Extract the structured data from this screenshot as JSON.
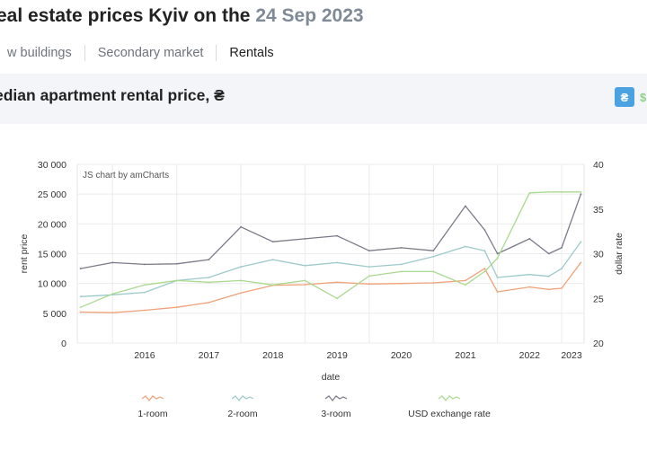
{
  "header": {
    "title_prefix": "eal estate prices Kyiv on the",
    "title_date": "24 Sep 2023"
  },
  "tabs": [
    {
      "label": "w buildings",
      "active": false
    },
    {
      "label": "Secondary market",
      "active": false
    },
    {
      "label": "Rentals",
      "active": true
    }
  ],
  "section": {
    "title": "edian apartment rental price, ₴",
    "currency_uah": "₴",
    "currency_usd": "$"
  },
  "chart_data": {
    "type": "line",
    "credit": "JS chart by amCharts",
    "xlabel": "date",
    "ylabel": "rent price",
    "y2label": "dollar rate",
    "x_ticks": [
      "2016",
      "2017",
      "2018",
      "2019",
      "2020",
      "2021",
      "2022",
      "2023"
    ],
    "y_ticks": [
      "0",
      "5 000",
      "10 000",
      "15 000",
      "20 000",
      "25 000",
      "30 000"
    ],
    "y2_ticks": [
      "20",
      "25",
      "30",
      "35",
      "40"
    ],
    "ylim": [
      0,
      30000
    ],
    "y2lim": [
      20,
      40
    ],
    "x_years": [
      2015.5,
      2016,
      2016.5,
      2017,
      2017.5,
      2018,
      2018.5,
      2019,
      2019.5,
      2020,
      2020.5,
      2021,
      2021.5,
      2021.8,
      2022,
      2022.5,
      2022.8,
      2023,
      2023.3
    ],
    "series": [
      {
        "name": "1-room",
        "color": "#f0a27a",
        "axis": "left",
        "values": [
          5200,
          5100,
          5500,
          6000,
          6800,
          8400,
          9700,
          9800,
          10200,
          9900,
          10000,
          10100,
          10500,
          12500,
          8600,
          9400,
          9000,
          9200,
          13500
        ]
      },
      {
        "name": "2-room",
        "color": "#9cc9c9",
        "axis": "left",
        "values": [
          7800,
          8100,
          8500,
          10500,
          11000,
          12800,
          14000,
          13000,
          13500,
          12800,
          13200,
          14500,
          16200,
          15500,
          11000,
          11500,
          11200,
          12500,
          17000
        ]
      },
      {
        "name": "3-room",
        "color": "#7a7a88",
        "axis": "left",
        "values": [
          12500,
          13500,
          13200,
          13300,
          14000,
          19500,
          17000,
          17500,
          18000,
          15500,
          16000,
          15500,
          23000,
          19000,
          15000,
          17500,
          15000,
          16000,
          25000
        ]
      },
      {
        "name": "USD exchange rate",
        "color": "#a9d98e",
        "axis": "right",
        "values": [
          24,
          25.5,
          26.5,
          27,
          26.8,
          27,
          26.5,
          27,
          25,
          27.5,
          28,
          28,
          26.5,
          28,
          29.5,
          36.8,
          36.9,
          36.9,
          36.9
        ]
      }
    ],
    "legend_position": "bottom"
  }
}
